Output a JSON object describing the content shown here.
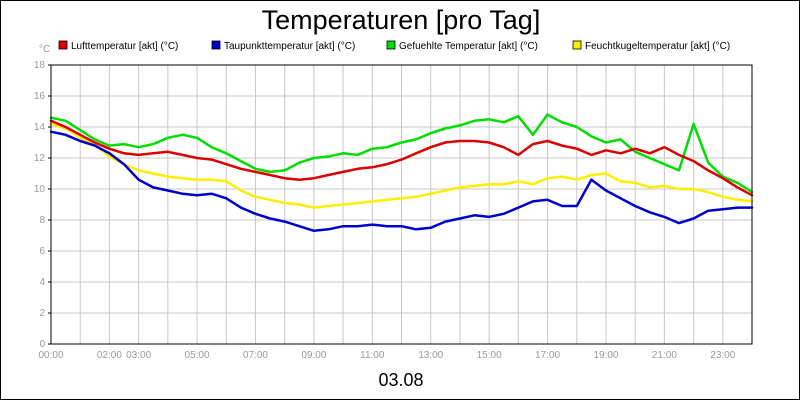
{
  "chart_data": {
    "type": "line",
    "title": "Temperaturen [pro Tag]",
    "date_label": "03.08",
    "y_unit": "°C",
    "ylim": [
      0,
      18
    ],
    "y_ticks": [
      "0",
      "2",
      "4",
      "6",
      "8",
      "10",
      "12",
      "14",
      "16",
      "18"
    ],
    "x_range_hours": [
      0,
      24
    ],
    "x_ticks": [
      {
        "label": "00:00",
        "hour": 0
      },
      {
        "label": "02:00",
        "hour": 2
      },
      {
        "label": "03:00",
        "hour": 3
      },
      {
        "label": "05:00",
        "hour": 5
      },
      {
        "label": "07:00",
        "hour": 7
      },
      {
        "label": "09:00",
        "hour": 9
      },
      {
        "label": "11:00",
        "hour": 11
      },
      {
        "label": "13:00",
        "hour": 13
      },
      {
        "label": "15:00",
        "hour": 15
      },
      {
        "label": "17:00",
        "hour": 17
      },
      {
        "label": "19:00",
        "hour": 19
      },
      {
        "label": "21:00",
        "hour": 21
      },
      {
        "label": "23:00",
        "hour": 23
      }
    ],
    "grid": true,
    "legend_position": "top",
    "x_hours": [
      0,
      0.5,
      1,
      1.5,
      2,
      2.5,
      3,
      3.5,
      4,
      4.5,
      5,
      5.5,
      6,
      6.5,
      7,
      7.5,
      8,
      8.5,
      9,
      9.5,
      10,
      10.5,
      11,
      11.5,
      12,
      12.5,
      13,
      13.5,
      14,
      14.5,
      15,
      15.5,
      16,
      16.5,
      17,
      17.5,
      18,
      18.5,
      19,
      19.5,
      20,
      20.5,
      21,
      21.5,
      22,
      22.5,
      23,
      23.5,
      24
    ],
    "series": [
      {
        "name": "Lufttemperatur [akt] (°C)",
        "color": "#dd0000",
        "values": [
          14.4,
          14.0,
          13.5,
          13.0,
          12.6,
          12.3,
          12.2,
          12.3,
          12.4,
          12.2,
          12.0,
          11.9,
          11.6,
          11.3,
          11.1,
          10.9,
          10.7,
          10.6,
          10.7,
          10.9,
          11.1,
          11.3,
          11.4,
          11.6,
          11.9,
          12.3,
          12.7,
          13.0,
          13.1,
          13.1,
          13.0,
          12.7,
          12.2,
          12.9,
          13.1,
          12.8,
          12.6,
          12.2,
          12.5,
          12.3,
          12.6,
          12.3,
          12.7,
          12.2,
          11.8,
          11.2,
          10.7,
          10.1,
          9.6
        ]
      },
      {
        "name": "Taupunkttemperatur [akt] (°C)",
        "color": "#0000cc",
        "values": [
          13.7,
          13.5,
          13.1,
          12.8,
          12.3,
          11.6,
          10.6,
          10.1,
          9.9,
          9.7,
          9.6,
          9.7,
          9.4,
          8.8,
          8.4,
          8.1,
          7.9,
          7.6,
          7.3,
          7.4,
          7.6,
          7.6,
          7.7,
          7.6,
          7.6,
          7.4,
          7.5,
          7.9,
          8.1,
          8.3,
          8.2,
          8.4,
          8.8,
          9.2,
          9.3,
          8.9,
          8.9,
          10.6,
          9.9,
          9.4,
          8.9,
          8.5,
          8.2,
          7.8,
          8.1,
          8.6,
          8.7,
          8.8,
          8.8
        ]
      },
      {
        "name": "Gefuehlte Temperatur [akt] (°C)",
        "color": "#00dd00",
        "values": [
          14.6,
          14.4,
          13.8,
          13.2,
          12.8,
          12.9,
          12.7,
          12.9,
          13.3,
          13.5,
          13.3,
          12.7,
          12.3,
          11.8,
          11.3,
          11.1,
          11.2,
          11.7,
          12.0,
          12.1,
          12.3,
          12.2,
          12.6,
          12.7,
          13.0,
          13.2,
          13.6,
          13.9,
          14.1,
          14.4,
          14.5,
          14.3,
          14.7,
          13.5,
          14.8,
          14.3,
          14.0,
          13.4,
          13.0,
          13.2,
          12.4,
          12.0,
          11.6,
          11.2,
          14.2,
          11.7,
          10.8,
          10.4,
          9.8
        ]
      },
      {
        "name": "Feuchtkugeltemperatur [akt] (°C)",
        "color": "#ffee00",
        "values": [
          14.2,
          13.9,
          13.3,
          12.9,
          12.1,
          11.6,
          11.2,
          11.0,
          10.8,
          10.7,
          10.6,
          10.6,
          10.5,
          9.9,
          9.5,
          9.3,
          9.1,
          9.0,
          8.8,
          8.9,
          9.0,
          9.1,
          9.2,
          9.3,
          9.4,
          9.5,
          9.7,
          9.9,
          10.1,
          10.2,
          10.3,
          10.3,
          10.5,
          10.3,
          10.7,
          10.8,
          10.6,
          10.9,
          11.0,
          10.5,
          10.4,
          10.1,
          10.2,
          10.0,
          10.0,
          9.8,
          9.5,
          9.3,
          9.2
        ]
      }
    ]
  }
}
